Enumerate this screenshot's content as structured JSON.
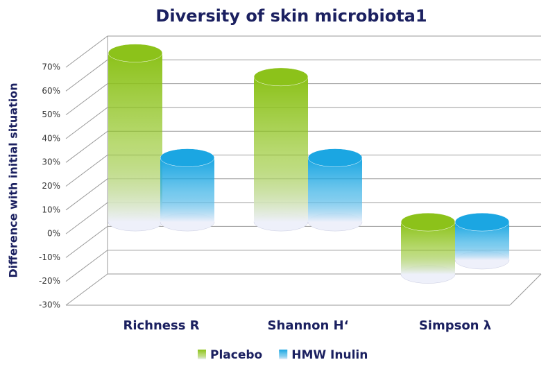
{
  "chart_data": {
    "type": "bar3d",
    "title": "Diversity of skin microbiota1",
    "y_label": "Difference with initial situation",
    "categories": [
      "Richness R",
      "Shannon H‘",
      "Simpson λ"
    ],
    "series": [
      {
        "name": "Placebo",
        "color": "#8cc21a",
        "values": [
          71,
          61,
          -22
        ]
      },
      {
        "name": "HMW Inulin",
        "color": "#1ba6e2",
        "values": [
          27,
          27,
          -16
        ]
      }
    ],
    "ylim": [
      -30,
      70
    ],
    "yticks": [
      {
        "value": -30,
        "label": "-30%"
      },
      {
        "value": -20,
        "label": "-20%"
      },
      {
        "value": -10,
        "label": "-10%"
      },
      {
        "value": 0,
        "label": "0%"
      },
      {
        "value": 10,
        "label": "10%"
      },
      {
        "value": 20,
        "label": "20%"
      },
      {
        "value": 30,
        "label": "30%"
      },
      {
        "value": 40,
        "label": "40%"
      },
      {
        "value": 50,
        "label": "50%"
      },
      {
        "value": 60,
        "label": "60%"
      },
      {
        "value": 70,
        "label": "70%"
      }
    ],
    "grid": true
  }
}
